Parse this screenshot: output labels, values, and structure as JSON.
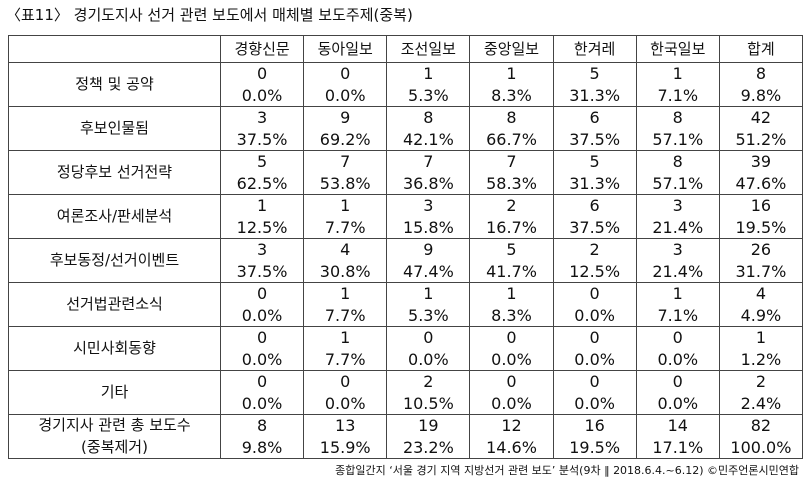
{
  "title": "〈표11〉 경기도지사 선거 관련 보도에서 매체별 보도주제(중복)",
  "columns": [
    "경향신문",
    "동아일보",
    "조선일보",
    "중앙일보",
    "한겨레",
    "한국일보",
    "합계"
  ],
  "rows": [
    {
      "label": "정책 및 공약",
      "counts": [
        0,
        0,
        1,
        1,
        5,
        1,
        8
      ],
      "percents": [
        "0.0%",
        "0.0%",
        "5.3%",
        "8.3%",
        "31.3%",
        "7.1%",
        "9.8%"
      ]
    },
    {
      "label": "후보인물됨",
      "counts": [
        3,
        9,
        8,
        8,
        6,
        8,
        42
      ],
      "percents": [
        "37.5%",
        "69.2%",
        "42.1%",
        "66.7%",
        "37.5%",
        "57.1%",
        "51.2%"
      ]
    },
    {
      "label": "정당후보 선거전략",
      "counts": [
        5,
        7,
        7,
        7,
        5,
        8,
        39
      ],
      "percents": [
        "62.5%",
        "53.8%",
        "36.8%",
        "58.3%",
        "31.3%",
        "57.1%",
        "47.6%"
      ]
    },
    {
      "label": "여론조사/판세분석",
      "counts": [
        1,
        1,
        3,
        2,
        6,
        3,
        16
      ],
      "percents": [
        "12.5%",
        "7.7%",
        "15.8%",
        "16.7%",
        "37.5%",
        "21.4%",
        "19.5%"
      ]
    },
    {
      "label": "후보동정/선거이벤트",
      "counts": [
        3,
        4,
        9,
        5,
        2,
        3,
        26
      ],
      "percents": [
        "37.5%",
        "30.8%",
        "47.4%",
        "41.7%",
        "12.5%",
        "21.4%",
        "31.7%"
      ]
    },
    {
      "label": "선거법관련소식",
      "counts": [
        0,
        1,
        1,
        1,
        0,
        1,
        4
      ],
      "percents": [
        "0.0%",
        "7.7%",
        "5.3%",
        "8.3%",
        "0.0%",
        "7.1%",
        "4.9%"
      ]
    },
    {
      "label": "시민사회동향",
      "counts": [
        0,
        1,
        0,
        0,
        0,
        0,
        1
      ],
      "percents": [
        "0.0%",
        "7.7%",
        "0.0%",
        "0.0%",
        "0.0%",
        "0.0%",
        "1.2%"
      ]
    },
    {
      "label": "기타",
      "counts": [
        0,
        0,
        2,
        0,
        0,
        0,
        2
      ],
      "percents": [
        "0.0%",
        "0.0%",
        "10.5%",
        "0.0%",
        "0.0%",
        "0.0%",
        "2.4%"
      ]
    },
    {
      "label": "경기지사 관련 총 보도수",
      "note": "(중복제거)",
      "counts": [
        8,
        13,
        19,
        12,
        16,
        14,
        82
      ],
      "percents": [
        "9.8%",
        "15.9%",
        "23.2%",
        "14.6%",
        "19.5%",
        "17.1%",
        "100.0%"
      ]
    }
  ],
  "footnote": "종합일간지 ‘서울 경기 지역 지방선거 관련 보도’ 분석(9차 ‖ 2018.6.4.~6.12) ©민주언론시민연합"
}
